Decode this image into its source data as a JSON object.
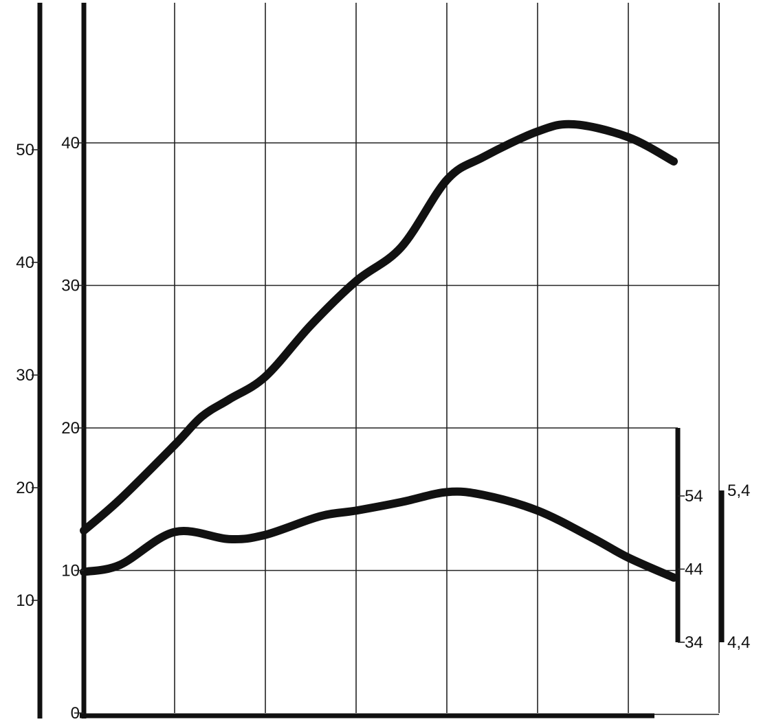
{
  "chart_data": {
    "type": "line",
    "title": "",
    "xlabel": "",
    "x": [
      0,
      1,
      2,
      3,
      4,
      5,
      6,
      6.5
    ],
    "x_grid_count": 7,
    "grid": true,
    "axes": {
      "inner_left": {
        "ticks": [
          "0",
          "10",
          "20",
          "30",
          "40"
        ],
        "range": [
          0,
          40
        ]
      },
      "outer_left": {
        "ticks": [
          "10",
          "20",
          "30",
          "40",
          "50"
        ],
        "range": [
          0,
          50
        ]
      },
      "right_a": {
        "ticks": [
          "34",
          "44",
          "54"
        ],
        "range": [
          34,
          54
        ]
      },
      "right_b": {
        "ticks": [
          "4,4",
          "5,4"
        ],
        "range": [
          4.4,
          5.4
        ]
      }
    },
    "series": [
      {
        "axis": "inner_left",
        "points": [
          [
            0,
            12.8
          ],
          [
            0.4,
            15
          ],
          [
            1,
            18.8
          ],
          [
            1.3,
            20.8
          ],
          [
            1.6,
            22
          ],
          [
            2,
            23.6
          ],
          [
            2.5,
            27.2
          ],
          [
            3,
            30.3
          ],
          [
            3.5,
            32.7
          ],
          [
            4,
            37.4
          ],
          [
            4.4,
            39
          ],
          [
            5,
            40.8
          ],
          [
            5.4,
            41.3
          ],
          [
            6,
            40.4
          ],
          [
            6.5,
            38.7
          ]
        ]
      },
      {
        "axis": "inner_left",
        "points": [
          [
            0,
            9.9
          ],
          [
            0.4,
            10.4
          ],
          [
            1,
            12.7
          ],
          [
            1.6,
            12.2
          ],
          [
            2,
            12.5
          ],
          [
            2.6,
            13.8
          ],
          [
            3,
            14.2
          ],
          [
            3.5,
            14.8
          ],
          [
            4,
            15.5
          ],
          [
            4.4,
            15.3
          ],
          [
            5,
            14.2
          ],
          [
            5.6,
            12.3
          ],
          [
            6,
            10.9
          ],
          [
            6.5,
            9.5
          ]
        ]
      }
    ]
  }
}
